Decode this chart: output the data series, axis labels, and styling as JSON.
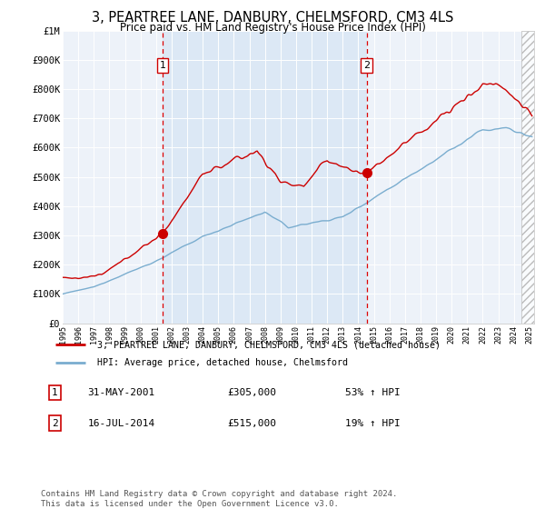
{
  "title": "3, PEARTREE LANE, DANBURY, CHELMSFORD, CM3 4LS",
  "subtitle": "Price paid vs. HM Land Registry's House Price Index (HPI)",
  "legend_line1": "3, PEARTREE LANE, DANBURY, CHELMSFORD, CM3 4LS (detached house)",
  "legend_line2": "HPI: Average price, detached house, Chelmsford",
  "sale1_date_label": "31-MAY-2001",
  "sale1_price_label": "£305,000",
  "sale1_pct_label": "53% ↑ HPI",
  "sale2_date_label": "16-JUL-2014",
  "sale2_price_label": "£515,000",
  "sale2_pct_label": "19% ↑ HPI",
  "footer": "Contains HM Land Registry data © Crown copyright and database right 2024.\nThis data is licensed under the Open Government Licence v3.0.",
  "red_color": "#cc0000",
  "blue_color": "#7aadcf",
  "shade_color": "#dce8f5",
  "dashed_red": "#dd0000",
  "background_plot": "#edf2f9",
  "grid_color": "#ffffff",
  "sale1_year": 2001.42,
  "sale2_year": 2014.54,
  "sale1_price": 305000,
  "sale2_price": 515000,
  "ylim_max": 1000000,
  "xlim_start": 1995.0,
  "xlim_end": 2025.3
}
